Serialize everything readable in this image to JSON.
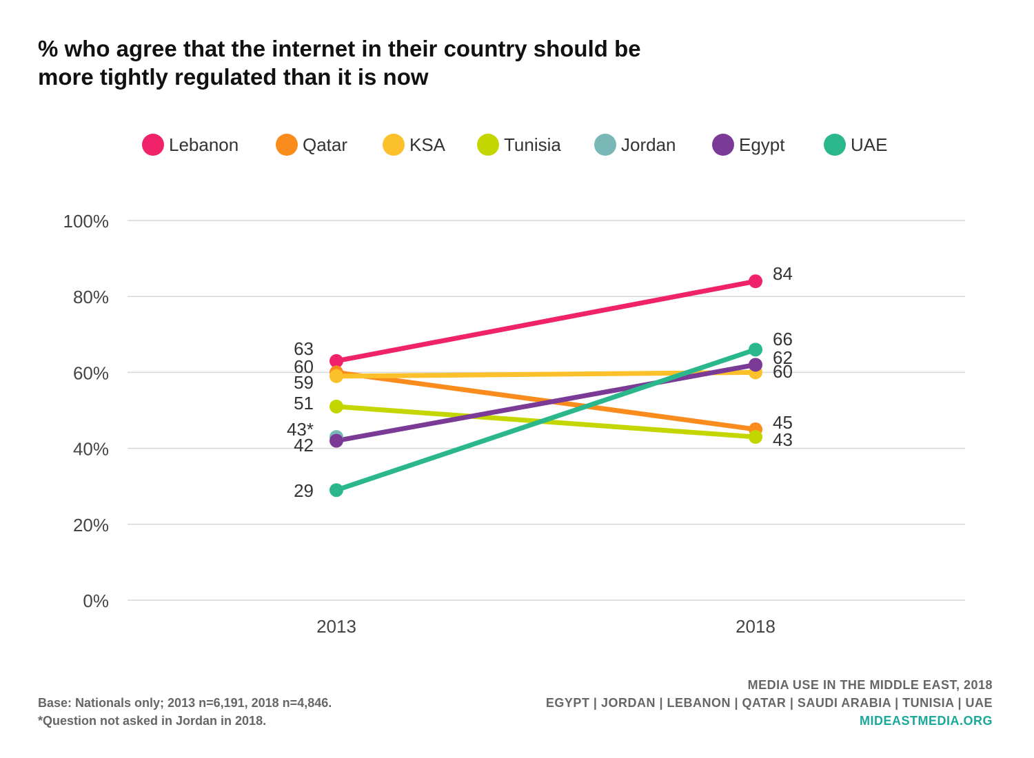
{
  "title": {
    "line1": "% who agree that the internet in their country should be",
    "line2": "more tightly regulated than it is now"
  },
  "chart_data": {
    "type": "line",
    "x": [
      "2013",
      "2018"
    ],
    "ylim": [
      0,
      100
    ],
    "yticks": [
      "0%",
      "20%",
      "40%",
      "60%",
      "80%",
      "100%"
    ],
    "grid": true,
    "legend_position": "top",
    "series": [
      {
        "name": "Lebanon",
        "color": "#f0226a",
        "values": [
          63,
          84
        ],
        "labels": [
          "63",
          "84"
        ]
      },
      {
        "name": "Qatar",
        "color": "#fa8c1e",
        "values": [
          60,
          45
        ],
        "labels": [
          "60",
          "45"
        ]
      },
      {
        "name": "KSA",
        "color": "#fcc12a",
        "values": [
          59,
          60
        ],
        "labels": [
          "59",
          "60"
        ]
      },
      {
        "name": "Tunisia",
        "color": "#c4d600",
        "values": [
          51,
          43
        ],
        "labels": [
          "51",
          "43"
        ]
      },
      {
        "name": "Jordan",
        "color": "#7ab8b8",
        "values": [
          43,
          null
        ],
        "labels": [
          "43*",
          ""
        ]
      },
      {
        "name": "Egypt",
        "color": "#7a3a96",
        "values": [
          42,
          62
        ],
        "labels": [
          "42",
          "62"
        ]
      },
      {
        "name": "UAE",
        "color": "#2bb78c",
        "values": [
          29,
          66
        ],
        "labels": [
          "29",
          "66"
        ]
      }
    ]
  },
  "footer": {
    "base": "Base: Nationals only; 2013 n=6,191, 2018 n=4,846.",
    "note": "*Question not asked in Jordan in 2018.",
    "source_title": "MEDIA USE IN THE MIDDLE EAST, 2018",
    "countries": "EGYPT | JORDAN | LEBANON | QATAR | SAUDI ARABIA | TUNISIA | UAE",
    "website": "MIDEASTMEDIA.ORG"
  }
}
